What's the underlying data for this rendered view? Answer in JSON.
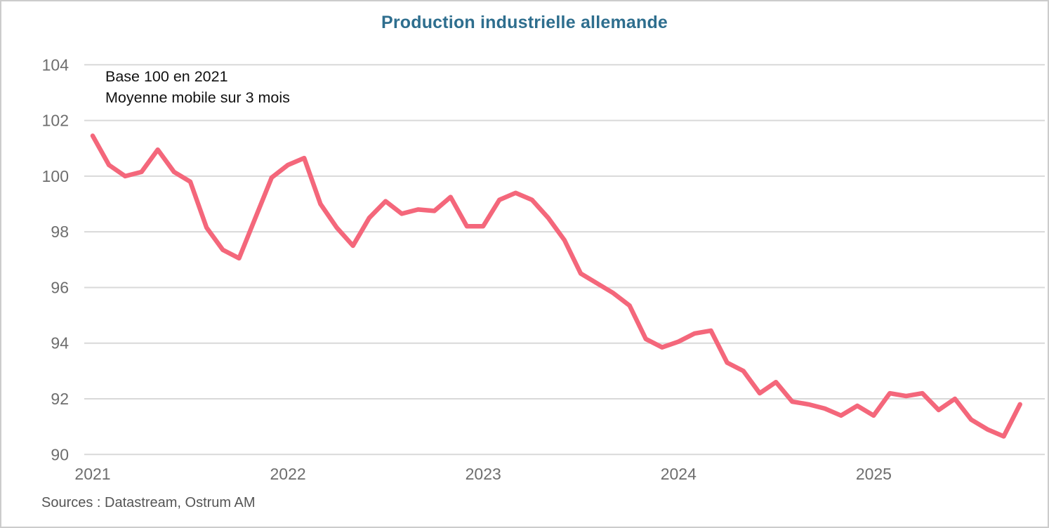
{
  "chart_data": {
    "type": "line",
    "title": "Production industrielle allemande",
    "annotations": [
      "Base 100 en 2021",
      "Moyenne mobile sur 3 mois"
    ],
    "x_start_month": "2021-01",
    "x_end_month": "2025-10",
    "x_tick_labels": [
      "2021",
      "2022",
      "2023",
      "2024",
      "2025"
    ],
    "y_ticks": [
      104,
      102,
      100,
      98,
      96,
      94,
      92,
      90
    ],
    "ylim": [
      90,
      104
    ],
    "grid": "horizontal-only",
    "legend": "none",
    "line_color": "#F4677B",
    "values": [
      101.45,
      100.4,
      100.0,
      100.15,
      100.95,
      100.15,
      99.8,
      98.15,
      97.35,
      97.05,
      98.5,
      99.95,
      100.4,
      100.65,
      99.0,
      98.15,
      97.5,
      98.5,
      99.1,
      98.65,
      98.8,
      98.75,
      99.25,
      98.2,
      98.2,
      99.15,
      99.4,
      99.15,
      98.5,
      97.7,
      96.5,
      96.15,
      95.8,
      95.35,
      94.15,
      93.85,
      94.05,
      94.35,
      94.45,
      93.3,
      93.0,
      92.2,
      92.6,
      91.9,
      91.8,
      91.65,
      91.4,
      91.75,
      91.4,
      92.2,
      92.1,
      92.2,
      91.6,
      92.0,
      91.25,
      90.9,
      90.65,
      91.8
    ]
  },
  "source_note": "Sources : Datastream, Ostrum AM",
  "colors": {
    "title": "#2E6E8E",
    "line": "#F4677B",
    "grid": "#D9D9D9",
    "axis_text": "#6E6E6E",
    "source_text": "#555555",
    "border": "#CCCCCC"
  }
}
